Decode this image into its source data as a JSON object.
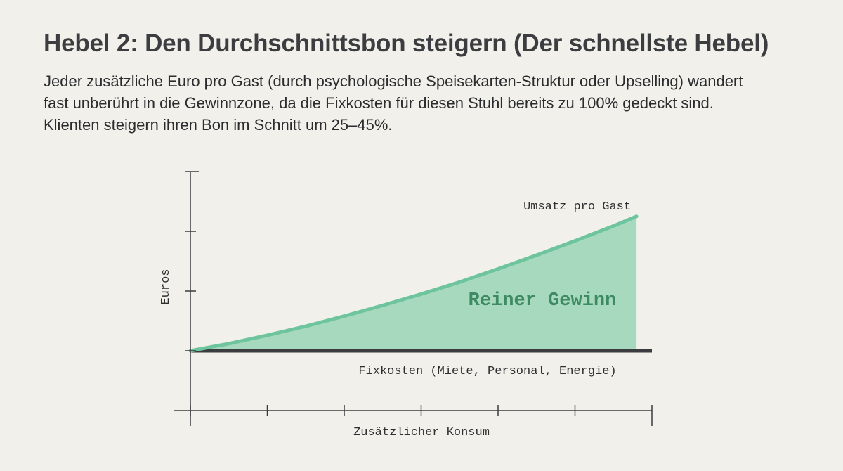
{
  "slide": {
    "title": "Hebel 2: Den Durchschnittsbon steigern (Der schnellste Hebel)",
    "body": "Jeder zusätzliche Euro pro Gast (durch psychologische Speisekarten-Struktur oder Upselling) wandert fast unberührt in die Gewinnzone, da die Fixkosten für diesen Stuhl bereits zu 100% gedeckt sind. Klienten steigern ihren Bon im Schnitt um 25–45%."
  },
  "chart_data": {
    "type": "area",
    "title": "",
    "xlabel": "Zusätzlicher Konsum",
    "ylabel": "Euros",
    "x_ticks": 6,
    "y_ticks": 3,
    "xlim": [
      0,
      6
    ],
    "ylim": [
      0,
      4
    ],
    "grid": false,
    "legend": "none",
    "series": [
      {
        "name": "Umsatz pro Gast",
        "x": [
          0,
          0.5,
          1,
          1.5,
          2,
          2.5,
          3,
          3.5,
          4,
          4.5,
          5,
          5.5,
          5.8
        ],
        "values": [
          1,
          1.12,
          1.26,
          1.41,
          1.58,
          1.76,
          1.95,
          2.15,
          2.37,
          2.6,
          2.84,
          3.09,
          3.25
        ],
        "color": "#6ec59d"
      },
      {
        "name": "Fixkosten (Miete, Personal, Energie)",
        "x": [
          0,
          6
        ],
        "values": [
          1,
          1
        ],
        "color": "#3a3c3f"
      }
    ],
    "annotations": [
      {
        "text": "Reiner Gewinn",
        "color": "#3e8a63"
      }
    ],
    "fill_color": "#a7d9bf"
  }
}
